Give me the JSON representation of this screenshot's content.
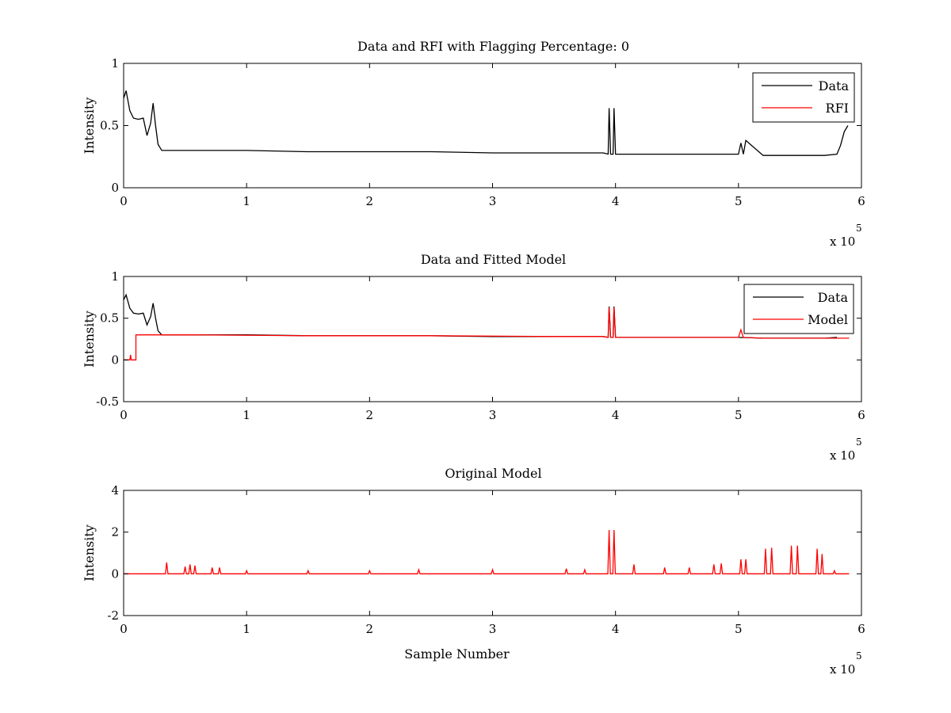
{
  "chart_data": [
    {
      "type": "line",
      "title": "Data and RFI with Flagging Percentage: 0",
      "xlabel": "",
      "ylabel": "Intensity",
      "xlim": [
        0,
        600000
      ],
      "ylim": [
        0,
        1
      ],
      "x_ticks": [
        "0",
        "1",
        "2",
        "3",
        "4",
        "5",
        "6"
      ],
      "y_ticks": [
        "0",
        "0.5",
        "1"
      ],
      "x_exponent": {
        "base": "x 10",
        "power": "5"
      },
      "grid": false,
      "legend": {
        "position": "top-right",
        "entries": [
          "Data",
          "RFI"
        ]
      },
      "series": [
        {
          "name": "Data",
          "color": "#000000",
          "x": [
            0,
            2000,
            5000,
            8000,
            12000,
            16000,
            19000,
            22000,
            24000,
            26000,
            28000,
            31000,
            36000,
            40000,
            60000,
            100000,
            150000,
            200000,
            250000,
            300000,
            350000,
            390000,
            394000,
            394800,
            396000,
            398000,
            398800,
            400000,
            430000,
            480000,
            500000,
            502000,
            504000,
            506000,
            520000,
            530000,
            540000,
            560000,
            570000,
            580000,
            583000,
            586000,
            589000
          ],
          "y": [
            0.72,
            0.78,
            0.62,
            0.56,
            0.55,
            0.56,
            0.42,
            0.52,
            0.68,
            0.5,
            0.35,
            0.3,
            0.3,
            0.3,
            0.3,
            0.3,
            0.29,
            0.29,
            0.29,
            0.28,
            0.28,
            0.28,
            0.27,
            0.64,
            0.27,
            0.27,
            0.64,
            0.27,
            0.27,
            0.27,
            0.27,
            0.36,
            0.27,
            0.38,
            0.26,
            0.26,
            0.26,
            0.26,
            0.26,
            0.27,
            0.34,
            0.45,
            0.5
          ]
        },
        {
          "name": "RFI",
          "color": "#ff0000",
          "x": [],
          "y": []
        }
      ]
    },
    {
      "type": "line",
      "title": "Data and Fitted Model",
      "xlabel": "",
      "ylabel": "Intensity",
      "xlim": [
        0,
        600000
      ],
      "ylim": [
        -0.5,
        1
      ],
      "x_ticks": [
        "0",
        "1",
        "2",
        "3",
        "4",
        "5",
        "6"
      ],
      "y_ticks": [
        "-0.5",
        "0",
        "0.5",
        "1"
      ],
      "x_exponent": {
        "base": "x 10",
        "power": "5"
      },
      "grid": false,
      "legend": {
        "position": "top-right",
        "entries": [
          "Data",
          "Model"
        ]
      },
      "series": [
        {
          "name": "Data",
          "color": "#000000",
          "x": [
            0,
            2000,
            5000,
            8000,
            12000,
            16000,
            19000,
            22000,
            24000,
            26000,
            28000,
            31000,
            36000,
            40000,
            60000,
            100000,
            150000,
            200000,
            250000,
            300000,
            350000,
            390000,
            394000,
            394800,
            396000,
            398000,
            398800,
            400000,
            430000,
            480000,
            500000,
            520000,
            540000,
            560000,
            570000,
            580000
          ],
          "y": [
            0.72,
            0.78,
            0.62,
            0.56,
            0.55,
            0.56,
            0.42,
            0.52,
            0.68,
            0.5,
            0.35,
            0.3,
            0.3,
            0.3,
            0.3,
            0.3,
            0.29,
            0.29,
            0.29,
            0.28,
            0.28,
            0.28,
            0.27,
            0.64,
            0.27,
            0.27,
            0.64,
            0.27,
            0.27,
            0.27,
            0.27,
            0.26,
            0.26,
            0.26,
            0.26,
            0.27
          ]
        },
        {
          "name": "Model",
          "color": "#ff0000",
          "x": [
            0,
            5000,
            5600,
            6200,
            10000,
            10001,
            60000,
            150000,
            250000,
            350000,
            390000,
            394000,
            394800,
            396000,
            398000,
            398800,
            400000,
            480000,
            500000,
            502000,
            504000,
            520000,
            540000,
            560000,
            580000,
            590000
          ],
          "y": [
            0,
            0,
            0.06,
            0,
            0,
            0.3,
            0.3,
            0.29,
            0.29,
            0.28,
            0.28,
            0.27,
            0.63,
            0.27,
            0.27,
            0.63,
            0.27,
            0.27,
            0.27,
            0.36,
            0.27,
            0.26,
            0.26,
            0.26,
            0.26,
            0.26
          ]
        }
      ]
    },
    {
      "type": "line",
      "title": "Original Model",
      "xlabel": "Sample Number",
      "ylabel": "Intensity",
      "xlim": [
        0,
        600000
      ],
      "ylim": [
        -2,
        4
      ],
      "x_ticks": [
        "0",
        "1",
        "2",
        "3",
        "4",
        "5",
        "6"
      ],
      "y_ticks": [
        "-2",
        "0",
        "2",
        "4"
      ],
      "x_exponent": {
        "base": "x 10",
        "power": "5"
      },
      "grid": false,
      "legend": null,
      "series": [
        {
          "name": "",
          "color": "#ff0000",
          "baseline": 0,
          "xmax": 590000,
          "peaks": [
            [
              35000,
              0.55
            ],
            [
              50000,
              0.35
            ],
            [
              54000,
              0.45
            ],
            [
              58000,
              0.4
            ],
            [
              72000,
              0.3
            ],
            [
              78000,
              0.3
            ],
            [
              100000,
              0.15
            ],
            [
              150000,
              0.15
            ],
            [
              200000,
              0.15
            ],
            [
              240000,
              0.2
            ],
            [
              300000,
              0.2
            ],
            [
              360000,
              0.25
            ],
            [
              375000,
              0.2
            ],
            [
              394800,
              2.1
            ],
            [
              398800,
              2.1
            ],
            [
              415000,
              0.45
            ],
            [
              440000,
              0.3
            ],
            [
              460000,
              0.3
            ],
            [
              480000,
              0.45
            ],
            [
              486000,
              0.5
            ],
            [
              502000,
              0.7
            ],
            [
              506000,
              0.7
            ],
            [
              522000,
              1.2
            ],
            [
              527000,
              1.25
            ],
            [
              543000,
              1.35
            ],
            [
              548000,
              1.35
            ],
            [
              564000,
              1.2
            ],
            [
              568000,
              0.95
            ],
            [
              578000,
              0.15
            ]
          ]
        }
      ]
    }
  ]
}
